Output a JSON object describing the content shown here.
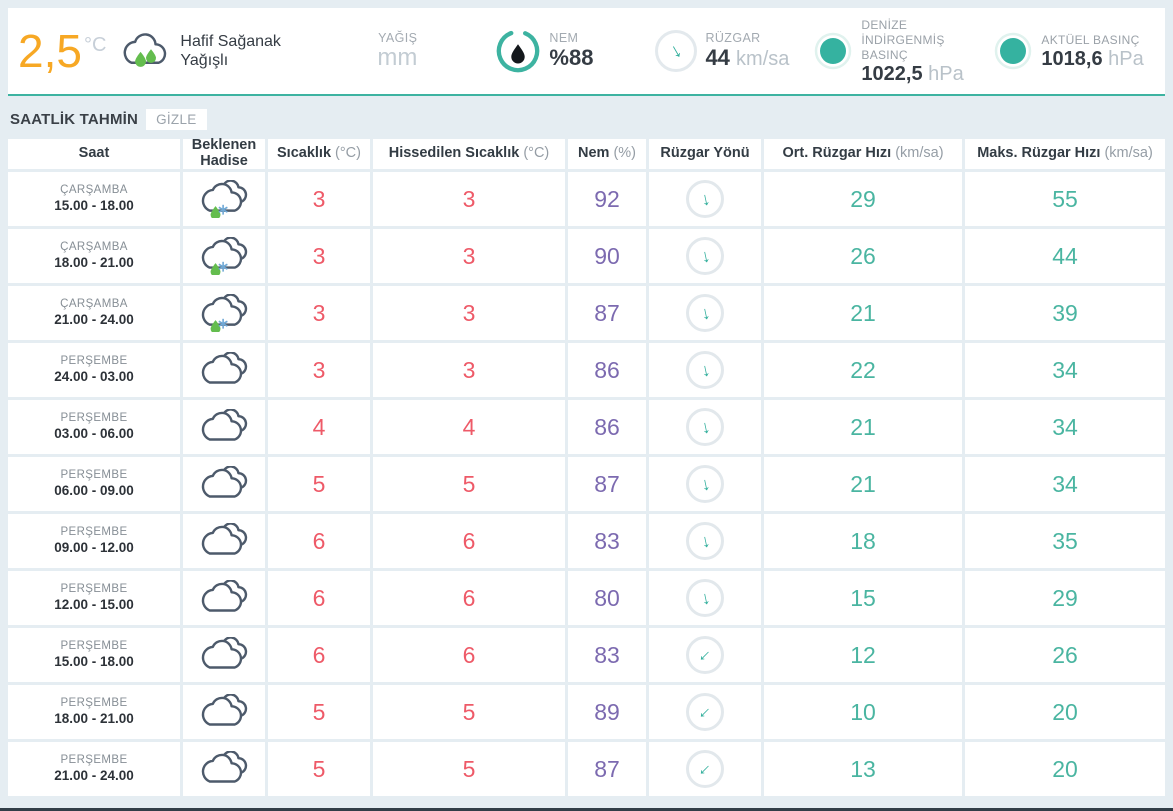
{
  "current": {
    "temperature": "2,5",
    "temperature_unit": "°C",
    "condition": "Hafif Sağanak Yağışlı",
    "condition_icon": "rain-cloud-icon",
    "precipitation_label": "YAĞIŞ",
    "precipitation_unit": "mm",
    "humidity_label": "NEM",
    "humidity_value": "%88",
    "humidity_icon": "water-drop-gauge-icon",
    "wind_label": "RÜZGAR",
    "wind_value": "44",
    "wind_unit": "km/sa",
    "wind_icon": "wind-direction-arrow-icon",
    "msl_pressure_label": "DENİZE İNDİRGENMİŞ BASINÇ",
    "msl_pressure_value": "1022,5",
    "msl_pressure_unit": "hPa",
    "actual_pressure_label": "AKTÜEL BASINÇ",
    "actual_pressure_value": "1018,6",
    "actual_pressure_unit": "hPa"
  },
  "section": {
    "title": "SAATLİK TAHMİN",
    "toggle_label": "GİZLE"
  },
  "table": {
    "headers": [
      {
        "key": "saat",
        "label": "Saat",
        "unit": ""
      },
      {
        "key": "beklenen-hadise",
        "label": "Beklenen Hadise",
        "unit": ""
      },
      {
        "key": "sicaklik",
        "label": "Sıcaklık",
        "unit": "(°C)"
      },
      {
        "key": "hissedilen-sicaklik",
        "label": "Hissedilen Sıcaklık",
        "unit": "(°C)"
      },
      {
        "key": "nem",
        "label": "Nem",
        "unit": "(%)"
      },
      {
        "key": "ruzgar-yonu",
        "label": "Rüzgar Yönü",
        "unit": ""
      },
      {
        "key": "ort-ruzgar-hizi",
        "label": "Ort. Rüzgar Hızı",
        "unit": "(km/sa)"
      },
      {
        "key": "maks-ruzgar-hizi",
        "label": "Maks. Rüzgar Hızı",
        "unit": "(km/sa)"
      }
    ],
    "rows": [
      {
        "day": "ÇARŞAMBA",
        "time": "15.00 - 18.00",
        "icon": "sleet",
        "temp": "3",
        "feels": "3",
        "humidity": "92",
        "wind_dir": "down",
        "wind_deg": -12,
        "avg_wind": "29",
        "max_wind": "55"
      },
      {
        "day": "ÇARŞAMBA",
        "time": "18.00 - 21.00",
        "icon": "sleet",
        "temp": "3",
        "feels": "3",
        "humidity": "90",
        "wind_dir": "down",
        "wind_deg": -12,
        "avg_wind": "26",
        "max_wind": "44"
      },
      {
        "day": "ÇARŞAMBA",
        "time": "21.00 - 24.00",
        "icon": "sleet",
        "temp": "3",
        "feels": "3",
        "humidity": "87",
        "wind_dir": "down",
        "wind_deg": -12,
        "avg_wind": "21",
        "max_wind": "39"
      },
      {
        "day": "PERŞEMBE",
        "time": "24.00 - 03.00",
        "icon": "cloudy",
        "temp": "3",
        "feels": "3",
        "humidity": "86",
        "wind_dir": "down",
        "wind_deg": -12,
        "avg_wind": "22",
        "max_wind": "34"
      },
      {
        "day": "PERŞEMBE",
        "time": "03.00 - 06.00",
        "icon": "cloudy",
        "temp": "4",
        "feels": "4",
        "humidity": "86",
        "wind_dir": "down",
        "wind_deg": -12,
        "avg_wind": "21",
        "max_wind": "34"
      },
      {
        "day": "PERŞEMBE",
        "time": "06.00 - 09.00",
        "icon": "cloudy",
        "temp": "5",
        "feels": "5",
        "humidity": "87",
        "wind_dir": "down",
        "wind_deg": -12,
        "avg_wind": "21",
        "max_wind": "34"
      },
      {
        "day": "PERŞEMBE",
        "time": "09.00 - 12.00",
        "icon": "cloudy",
        "temp": "6",
        "feels": "6",
        "humidity": "83",
        "wind_dir": "down",
        "wind_deg": -12,
        "avg_wind": "18",
        "max_wind": "35"
      },
      {
        "day": "PERŞEMBE",
        "time": "12.00 - 15.00",
        "icon": "cloudy",
        "temp": "6",
        "feels": "6",
        "humidity": "80",
        "wind_dir": "down",
        "wind_deg": -12,
        "avg_wind": "15",
        "max_wind": "29"
      },
      {
        "day": "PERŞEMBE",
        "time": "15.00 - 18.00",
        "icon": "cloudy",
        "temp": "6",
        "feels": "6",
        "humidity": "83",
        "wind_dir": "down-left",
        "wind_deg": 45,
        "avg_wind": "12",
        "max_wind": "26"
      },
      {
        "day": "PERŞEMBE",
        "time": "18.00 - 21.00",
        "icon": "cloudy",
        "temp": "5",
        "feels": "5",
        "humidity": "89",
        "wind_dir": "down-left",
        "wind_deg": 45,
        "avg_wind": "10",
        "max_wind": "20"
      },
      {
        "day": "PERŞEMBE",
        "time": "21.00 - 24.00",
        "icon": "cloudy",
        "temp": "5",
        "feels": "5",
        "humidity": "87",
        "wind_dir": "down-left",
        "wind_deg": 45,
        "avg_wind": "13",
        "max_wind": "20"
      }
    ]
  },
  "colors": {
    "accent_teal": "#3db3a1",
    "temperature_orange": "#f7a824",
    "temp_value_red": "#ee5a68",
    "humidity_purple": "#7c6ab0",
    "wind_teal": "#4ab5a1",
    "page_background": "#e5edf2",
    "rain_drop_green": "#64bd4e",
    "snowflake_blue": "#70a9d6"
  }
}
